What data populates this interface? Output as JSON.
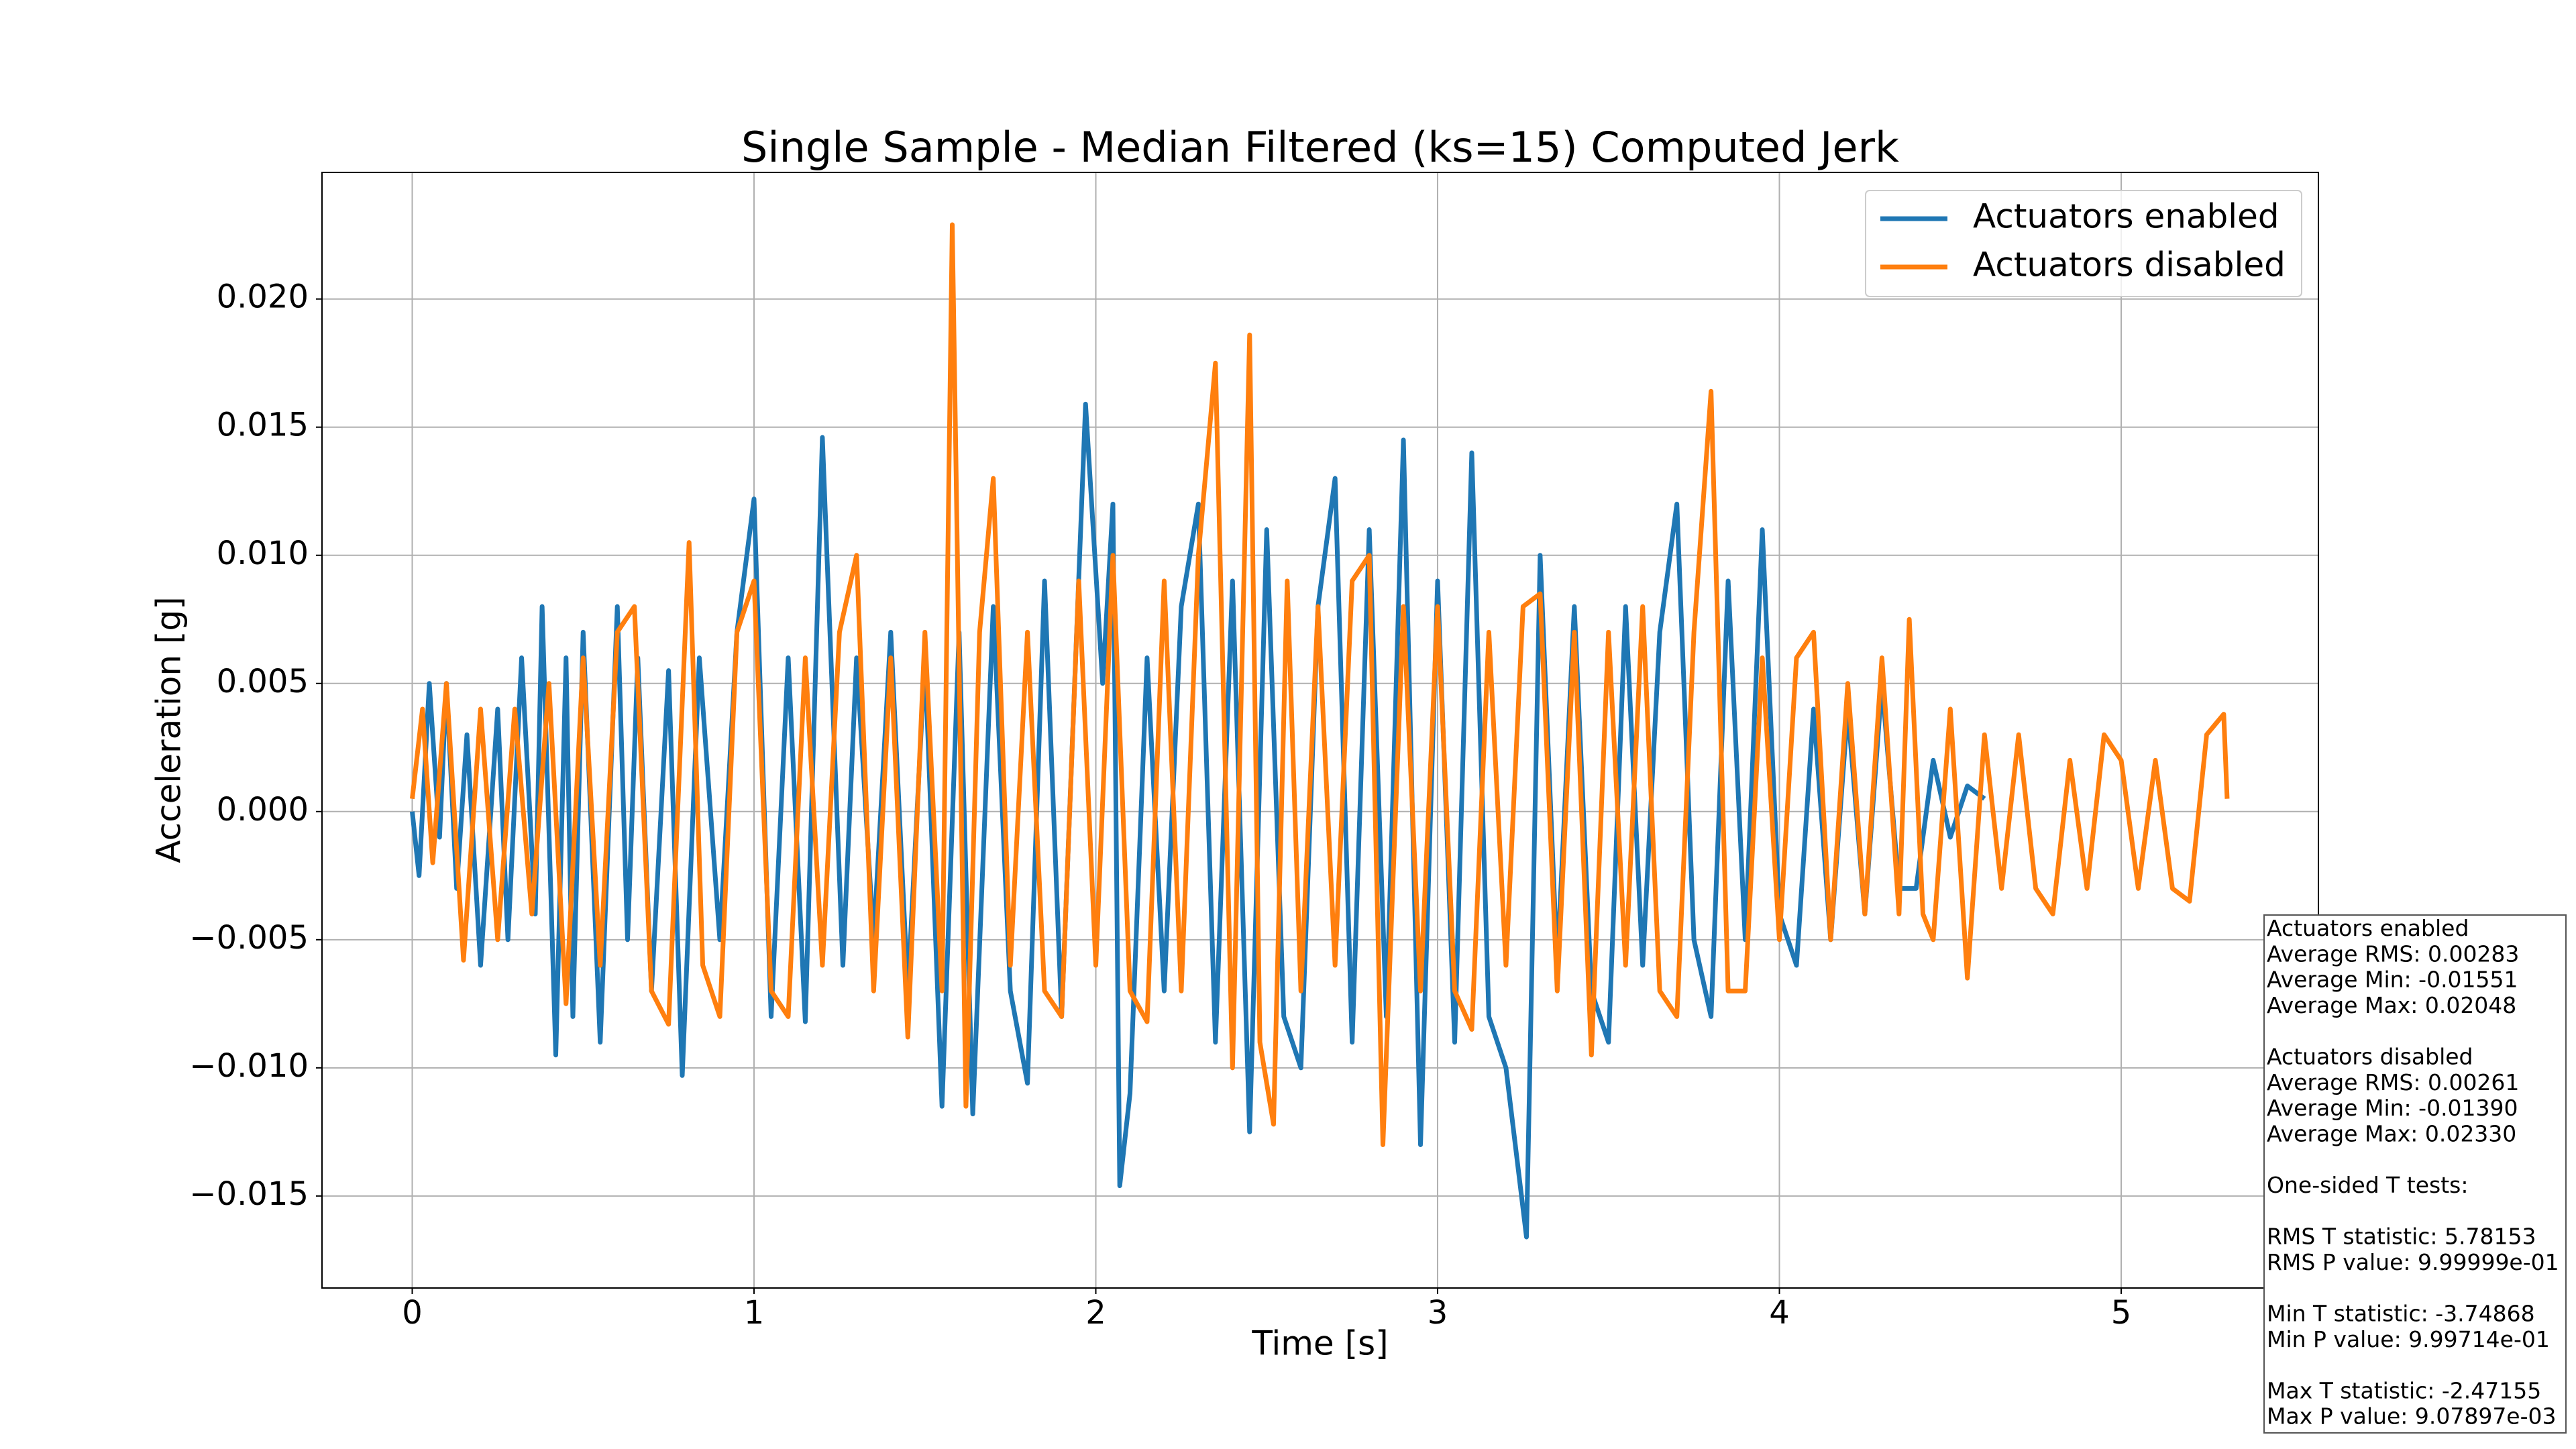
{
  "chart_data": {
    "type": "line",
    "title": "Single Sample - Median Filtered (ks=15) Computed Jerk",
    "x_label": "Time [s]",
    "y_label": "Acceleration [g]",
    "xlim": [
      -0.264,
      5.577
    ],
    "ylim": [
      -0.01859,
      0.02494
    ],
    "xticks": [
      0,
      1,
      2,
      3,
      4,
      5
    ],
    "yticks": [
      {
        "value": -0.015,
        "label": "−0.015"
      },
      {
        "value": -0.01,
        "label": "−0.010"
      },
      {
        "value": -0.005,
        "label": "−0.005"
      },
      {
        "value": 0,
        "label": "0.000"
      },
      {
        "value": 0.005,
        "label": "0.005"
      },
      {
        "value": 0.01,
        "label": "0.010"
      },
      {
        "value": 0.015,
        "label": "0.015"
      },
      {
        "value": 0.02,
        "label": "0.020"
      }
    ],
    "grid": true,
    "legend": "upper right",
    "series": [
      {
        "name": "Actuators enabled",
        "color": "#1f77b4",
        "x": [
          0,
          0.02,
          0.05,
          0.08,
          0.1,
          0.13,
          0.16,
          0.2,
          0.25,
          0.28,
          0.32,
          0.36,
          0.38,
          0.42,
          0.45,
          0.47,
          0.5,
          0.55,
          0.6,
          0.63,
          0.66,
          0.7,
          0.75,
          0.79,
          0.84,
          0.9,
          0.95,
          1.0,
          1.05,
          1.1,
          1.15,
          1.2,
          1.26,
          1.3,
          1.35,
          1.4,
          1.45,
          1.5,
          1.55,
          1.6,
          1.64,
          1.7,
          1.75,
          1.8,
          1.85,
          1.9,
          1.97,
          2.02,
          2.05,
          2.07,
          2.1,
          2.15,
          2.2,
          2.25,
          2.3,
          2.35,
          2.4,
          2.45,
          2.5,
          2.55,
          2.6,
          2.65,
          2.7,
          2.75,
          2.8,
          2.85,
          2.9,
          2.95,
          3.0,
          3.05,
          3.1,
          3.15,
          3.2,
          3.26,
          3.3,
          3.35,
          3.4,
          3.45,
          3.5,
          3.55,
          3.6,
          3.65,
          3.7,
          3.75,
          3.8,
          3.85,
          3.9,
          3.95,
          4.0,
          4.05,
          4.1,
          4.15,
          4.2,
          4.25,
          4.3,
          4.35,
          4.4,
          4.45,
          4.5,
          4.55,
          4.6
        ],
        "values": [
          0,
          -0.0025,
          0.005,
          -0.001,
          0.005,
          -0.003,
          0.003,
          -0.006,
          0.004,
          -0.005,
          0.006,
          -0.004,
          0.008,
          -0.0095,
          0.006,
          -0.008,
          0.007,
          -0.009,
          0.008,
          -0.005,
          0.006,
          -0.007,
          0.0055,
          -0.0103,
          0.006,
          -0.005,
          0.007,
          0.0122,
          -0.008,
          0.006,
          -0.0082,
          0.0146,
          -0.006,
          0.006,
          -0.005,
          0.007,
          -0.007,
          0.006,
          -0.0115,
          0.007,
          -0.0118,
          0.008,
          -0.007,
          -0.0106,
          0.009,
          -0.008,
          0.0159,
          0.005,
          0.012,
          -0.0146,
          -0.011,
          0.006,
          -0.007,
          0.008,
          0.012,
          -0.009,
          0.009,
          -0.0125,
          0.011,
          -0.008,
          -0.01,
          0.008,
          0.013,
          -0.009,
          0.011,
          -0.008,
          0.0145,
          -0.013,
          0.009,
          -0.009,
          0.014,
          -0.008,
          -0.01,
          -0.0166,
          0.01,
          -0.006,
          0.008,
          -0.007,
          -0.009,
          0.008,
          -0.006,
          0.007,
          0.012,
          -0.005,
          -0.008,
          0.009,
          -0.005,
          0.011,
          -0.004,
          -0.006,
          0.004,
          -0.005,
          0.004,
          -0.004,
          0.005,
          -0.003,
          -0.003,
          0.002,
          -0.001,
          0.001,
          0.0005
        ]
      },
      {
        "name": "Actuators disabled",
        "color": "#ff7f0e",
        "x": [
          0,
          0.03,
          0.06,
          0.1,
          0.15,
          0.2,
          0.25,
          0.3,
          0.35,
          0.4,
          0.45,
          0.5,
          0.55,
          0.6,
          0.65,
          0.7,
          0.75,
          0.81,
          0.85,
          0.9,
          0.95,
          1.0,
          1.05,
          1.1,
          1.15,
          1.2,
          1.25,
          1.3,
          1.35,
          1.4,
          1.45,
          1.5,
          1.55,
          1.58,
          1.62,
          1.66,
          1.7,
          1.75,
          1.8,
          1.85,
          1.9,
          1.95,
          2.0,
          2.05,
          2.1,
          2.15,
          2.2,
          2.25,
          2.3,
          2.35,
          2.4,
          2.45,
          2.48,
          2.52,
          2.56,
          2.6,
          2.65,
          2.7,
          2.75,
          2.8,
          2.84,
          2.9,
          2.95,
          3.0,
          3.05,
          3.1,
          3.15,
          3.2,
          3.25,
          3.3,
          3.35,
          3.4,
          3.45,
          3.5,
          3.55,
          3.6,
          3.65,
          3.7,
          3.75,
          3.8,
          3.85,
          3.9,
          3.95,
          4.0,
          4.05,
          4.1,
          4.15,
          4.2,
          4.25,
          4.3,
          4.35,
          4.38,
          4.42,
          4.45,
          4.5,
          4.55,
          4.6,
          4.65,
          4.7,
          4.75,
          4.8,
          4.85,
          4.9,
          4.95,
          5.0,
          5.05,
          5.1,
          5.15,
          5.2,
          5.25,
          5.3,
          5.31
        ],
        "values": [
          0.0005,
          0.004,
          -0.002,
          0.005,
          -0.0058,
          0.004,
          -0.005,
          0.004,
          -0.004,
          0.005,
          -0.0075,
          0.006,
          -0.006,
          0.007,
          0.008,
          -0.007,
          -0.0083,
          0.0105,
          -0.006,
          -0.008,
          0.007,
          0.009,
          -0.007,
          -0.008,
          0.006,
          -0.006,
          0.007,
          0.01,
          -0.007,
          0.006,
          -0.0088,
          0.007,
          -0.007,
          0.0229,
          -0.0115,
          0.007,
          0.013,
          -0.006,
          0.007,
          -0.007,
          -0.008,
          0.009,
          -0.006,
          0.01,
          -0.007,
          -0.0082,
          0.009,
          -0.007,
          0.01,
          0.0175,
          -0.01,
          0.0186,
          -0.009,
          -0.0122,
          0.009,
          -0.007,
          0.008,
          -0.006,
          0.009,
          0.01,
          -0.013,
          0.008,
          -0.007,
          0.008,
          -0.007,
          -0.0085,
          0.007,
          -0.006,
          0.008,
          0.0085,
          -0.007,
          0.007,
          -0.0095,
          0.007,
          -0.006,
          0.008,
          -0.007,
          -0.008,
          0.007,
          0.0164,
          -0.007,
          -0.007,
          0.006,
          -0.005,
          0.006,
          0.007,
          -0.005,
          0.005,
          -0.004,
          0.006,
          -0.004,
          0.0075,
          -0.004,
          -0.005,
          0.004,
          -0.0065,
          0.003,
          -0.003,
          0.003,
          -0.003,
          -0.004,
          0.002,
          -0.003,
          0.003,
          0.002,
          -0.003,
          0.002,
          -0.003,
          -0.0035,
          0.003,
          0.0038,
          0.0005
        ]
      }
    ],
    "stats_box": [
      [
        "Actuators enabled",
        "Average RMS: 0.00283",
        "Average Min: -0.01551",
        "Average Max: 0.02048"
      ],
      [
        "Actuators disabled",
        "Average RMS: 0.00261",
        "Average Min: -0.01390",
        "Average Max: 0.02330"
      ],
      [
        "One-sided T tests:"
      ],
      [
        "RMS T statistic: 5.78153",
        "RMS P value: 9.99999e-01"
      ],
      [
        "Min T statistic: -3.74868",
        "Min P value: 9.99714e-01"
      ],
      [
        "Max T statistic: -2.47155",
        "Max P value: 9.07897e-03"
      ]
    ]
  }
}
